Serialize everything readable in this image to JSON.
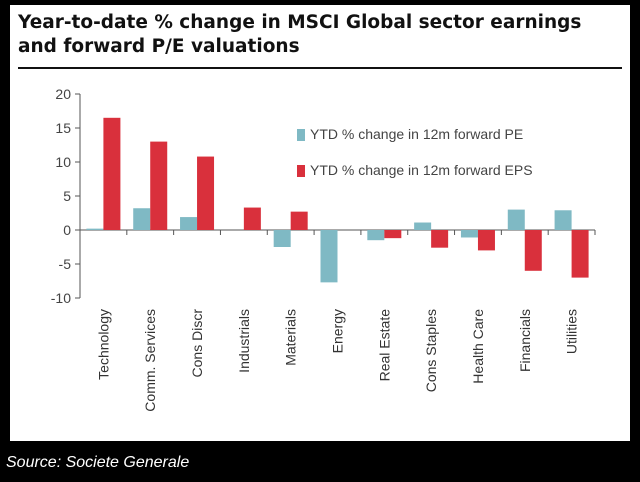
{
  "title": "Year-to-date % change in MSCI Global sector earnings and forward P/E valuations",
  "source": "Source: Societe Generale",
  "chart_data": {
    "type": "bar",
    "categories": [
      "Technology",
      "Comm. Services",
      "Cons Discr",
      "Industrials",
      "Materials",
      "Energy",
      "Real Estate",
      "Cons Staples",
      "Health Care",
      "Financials",
      "Utilities"
    ],
    "series": [
      {
        "name": "YTD % change in 12m forward PE",
        "color": "#7fb9c4",
        "values": [
          0.2,
          3.2,
          1.9,
          0,
          -2.5,
          -7.7,
          -1.5,
          1.1,
          -1.1,
          3.0,
          2.9
        ]
      },
      {
        "name": "YTD % change in 12m forward EPS",
        "color": "#d9303c",
        "values": [
          16.5,
          13.0,
          10.8,
          3.3,
          2.7,
          0,
          -1.2,
          -2.6,
          -3.0,
          -6.0,
          -7.0
        ]
      }
    ],
    "ylim": [
      -10,
      20
    ],
    "yticks": [
      20,
      15,
      10,
      5,
      0,
      -5,
      -10
    ],
    "xlabel": "",
    "ylabel": "",
    "legend": "top-right",
    "grid": false
  }
}
